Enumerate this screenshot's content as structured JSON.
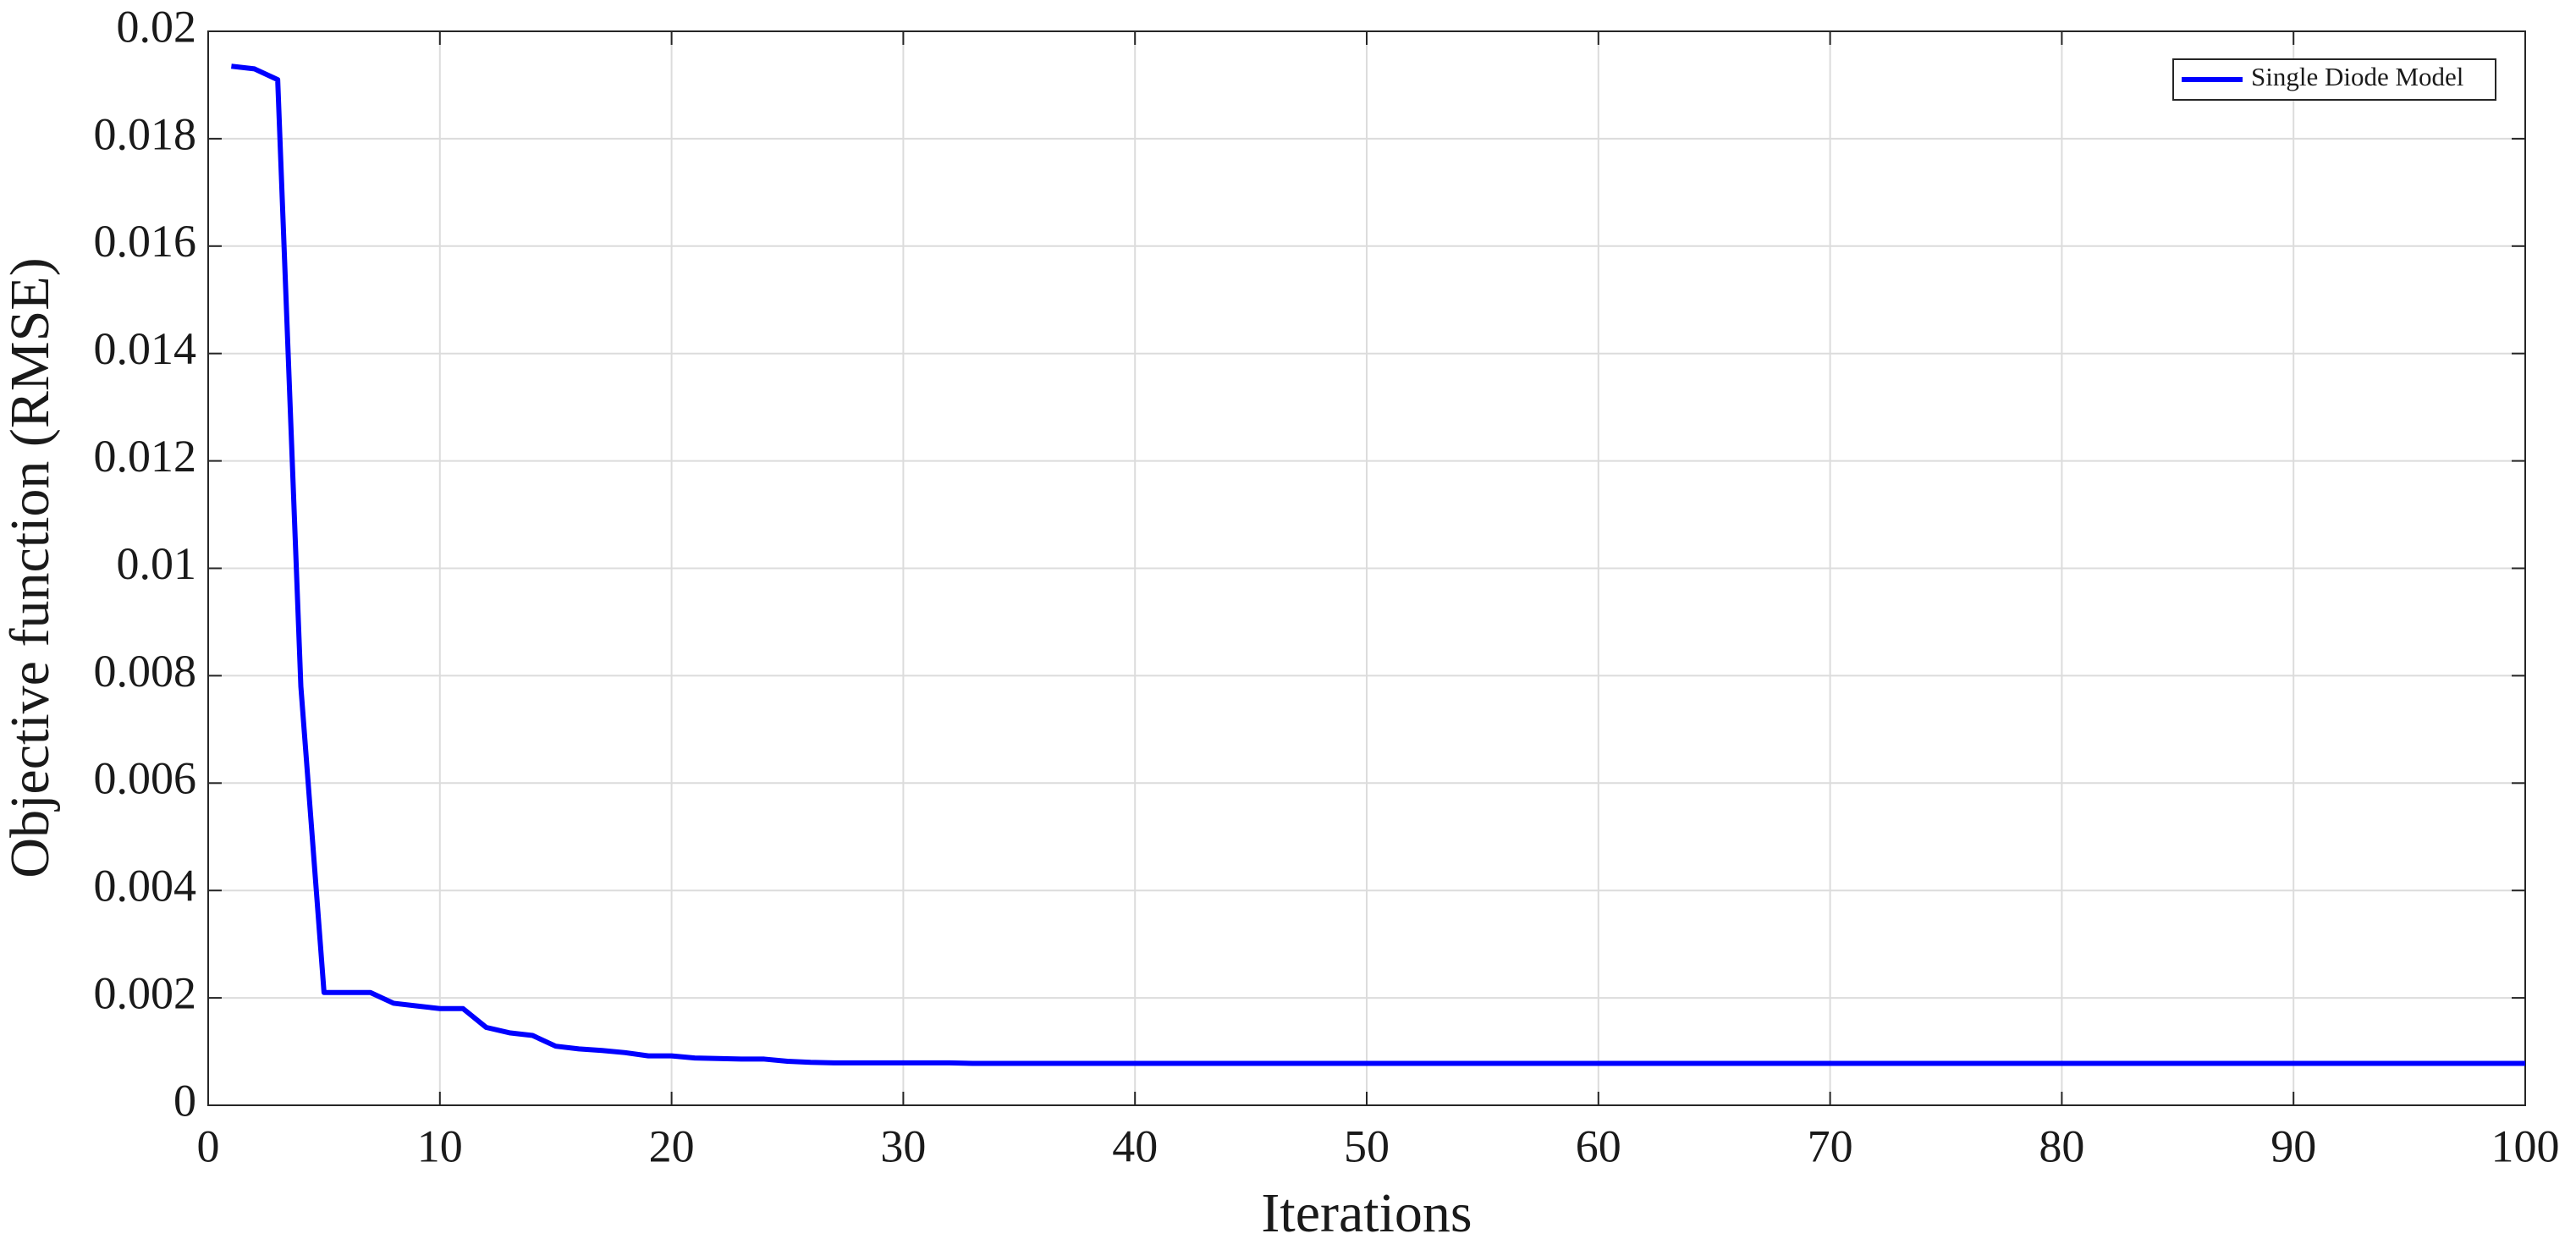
{
  "chart_data": {
    "type": "line",
    "xlabel": "Iterations",
    "ylabel": "Objective function (RMSE)",
    "x": [
      1,
      2,
      3,
      4,
      5,
      6,
      7,
      8,
      9,
      10,
      11,
      12,
      13,
      14,
      15,
      16,
      17,
      18,
      19,
      20,
      21,
      22,
      23,
      24,
      25,
      26,
      27,
      28,
      29,
      30,
      31,
      32,
      33,
      34,
      35,
      36,
      37,
      38,
      39,
      40,
      41,
      42,
      43,
      44,
      45,
      46,
      47,
      48,
      49,
      50,
      51,
      52,
      53,
      54,
      55,
      56,
      57,
      58,
      59,
      60,
      61,
      62,
      63,
      64,
      65,
      66,
      67,
      68,
      69,
      70,
      71,
      72,
      73,
      74,
      75,
      76,
      77,
      78,
      79,
      80,
      81,
      82,
      83,
      84,
      85,
      86,
      87,
      88,
      89,
      90,
      91,
      92,
      93,
      94,
      95,
      96,
      97,
      98,
      99,
      100
    ],
    "series": [
      {
        "name": "Single Diode Model",
        "color": "#0000ff",
        "values": [
          0.01935,
          0.0193,
          0.0191,
          0.0078,
          0.0021,
          0.0021,
          0.0021,
          0.0019,
          0.00185,
          0.0018,
          0.0018,
          0.00145,
          0.00135,
          0.0013,
          0.0011,
          0.00105,
          0.00102,
          0.00098,
          0.00092,
          0.00092,
          0.00088,
          0.00087,
          0.00086,
          0.00086,
          0.00082,
          0.0008,
          0.00079,
          0.00079,
          0.00079,
          0.00079,
          0.00079,
          0.00079,
          0.00078,
          0.00078,
          0.00078,
          0.00078,
          0.00078,
          0.00078,
          0.00078,
          0.00078,
          0.00078,
          0.00078,
          0.00078,
          0.00078,
          0.00078,
          0.00078,
          0.00078,
          0.00078,
          0.00078,
          0.00078,
          0.00078,
          0.00078,
          0.00078,
          0.00078,
          0.00078,
          0.00078,
          0.00078,
          0.00078,
          0.00078,
          0.00078,
          0.00078,
          0.00078,
          0.00078,
          0.00078,
          0.00078,
          0.00078,
          0.00078,
          0.00078,
          0.00078,
          0.00078,
          0.00078,
          0.00078,
          0.00078,
          0.00078,
          0.00078,
          0.00078,
          0.00078,
          0.00078,
          0.00078,
          0.00078,
          0.00078,
          0.00078,
          0.00078,
          0.00078,
          0.00078,
          0.00078,
          0.00078,
          0.00078,
          0.00078,
          0.00078,
          0.00078,
          0.00078,
          0.00078,
          0.00078,
          0.00078,
          0.00078,
          0.00078,
          0.00078,
          0.00078,
          0.00078
        ]
      }
    ],
    "xlim": [
      0,
      100
    ],
    "xticks": [
      0,
      10,
      20,
      30,
      40,
      50,
      60,
      70,
      80,
      90,
      100
    ],
    "ylim": [
      0,
      0.02
    ],
    "yticks": [
      0,
      0.002,
      0.004,
      0.006,
      0.008,
      0.01,
      0.012,
      0.014,
      0.016,
      0.018,
      0.02
    ],
    "grid": true,
    "legend": "upper-right"
  }
}
